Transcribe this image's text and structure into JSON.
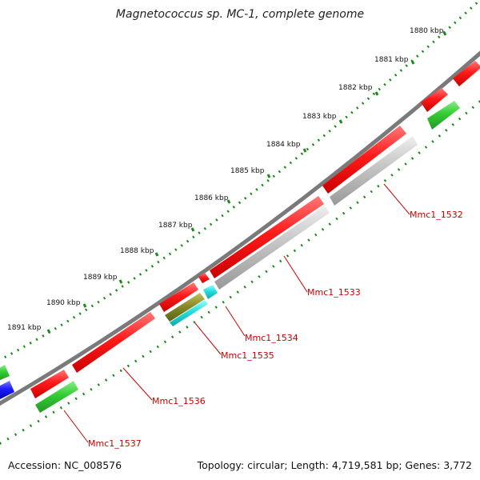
{
  "title": "Magnetococcus sp. MC-1, complete genome",
  "footer": {
    "accession": "Accession: NC_008576",
    "summary": "Topology: circular; Length: 4,719,581 bp; Genes: 3,772"
  },
  "ticks": [
    "1880 kbp",
    "1881 kbp",
    "1882 kbp",
    "1883 kbp",
    "1884 kbp",
    "1885 kbp",
    "1886 kbp",
    "1887 kbp",
    "1888 kbp",
    "1889 kbp",
    "1890 kbp",
    "1891 kbp"
  ],
  "genes": [
    "Mmc1_1532",
    "Mmc1_1533",
    "Mmc1_1534",
    "Mmc1_1535",
    "Mmc1_1536",
    "Mmc1_1537"
  ],
  "colors": {
    "backbone": "#7a7a7a",
    "forward_cds": "#ff1a1a",
    "rna": "#33cc33",
    "other": "#bdbdbd",
    "cyan": "#22dddd",
    "blue": "#1a1aff",
    "ticks": "#1a8a1a",
    "labels": "#cc0000"
  }
}
